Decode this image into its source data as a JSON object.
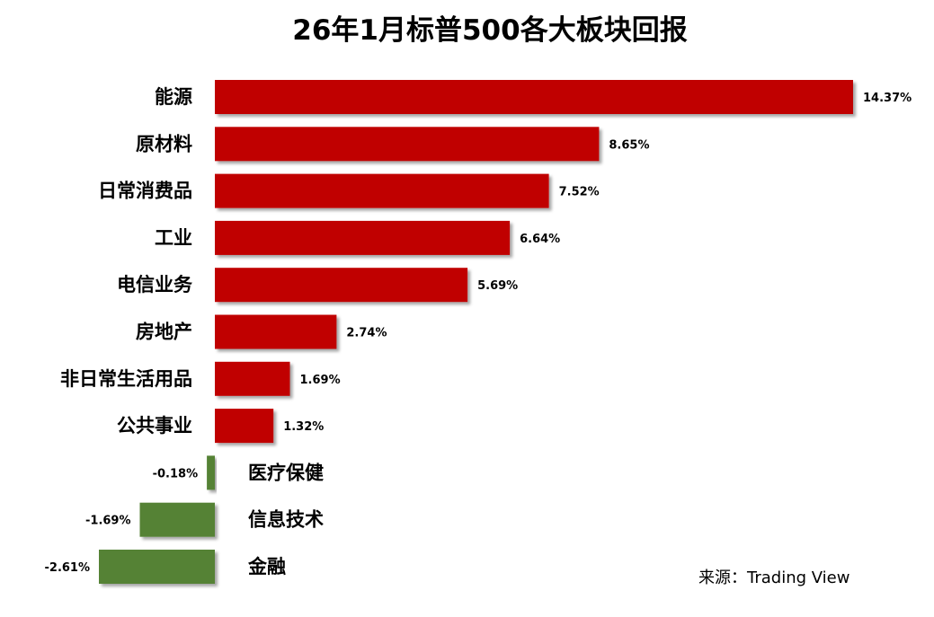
{
  "chart_data": {
    "type": "bar",
    "orientation": "horizontal",
    "title": "26年1月标普500各大板块回报",
    "xlabel": "",
    "ylabel": "",
    "categories": [
      "能源",
      "原材料",
      "日常消费品",
      "工业",
      "电信业务",
      "房地产",
      "非日常生活用品",
      "公共事业",
      "医疗保健",
      "信息技术",
      "金融"
    ],
    "values": [
      14.37,
      8.65,
      7.52,
      6.64,
      5.69,
      2.74,
      1.69,
      1.32,
      -0.18,
      -1.69,
      -2.61
    ],
    "value_labels": [
      "14.37%",
      "8.65%",
      "7.52%",
      "6.64%",
      "5.69%",
      "2.74%",
      "1.69%",
      "1.32%",
      "-0.18%",
      "-1.69%",
      "-2.61%"
    ],
    "xlim": [
      -2.61,
      14.37
    ],
    "grid": false,
    "legend": "none",
    "colors": {
      "positive": "#C00000",
      "negative": "#548235"
    },
    "source": "来源：Trading View"
  }
}
